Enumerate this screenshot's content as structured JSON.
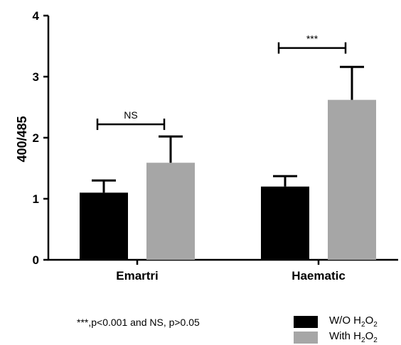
{
  "chart_data": {
    "type": "bar",
    "title": "",
    "ylabel": "400/485",
    "xlabel": "",
    "ylim": [
      0,
      4
    ],
    "yticks": [
      "0",
      "1",
      "2",
      "3",
      "4"
    ],
    "categories": [
      "Emartri",
      "Haematic"
    ],
    "series": [
      {
        "name_prefix": "W/O H",
        "name_sub": "2",
        "name_mid": "O",
        "name_sub2": "2",
        "color": "#000000",
        "values": [
          1.1,
          1.2
        ],
        "errors": [
          0.2,
          0.17
        ]
      },
      {
        "name_prefix": "With H",
        "name_sub": "2",
        "name_mid": "O",
        "name_sub2": "2",
        "color": "#a6a6a6",
        "values": [
          1.59,
          2.62
        ],
        "errors": [
          0.43,
          0.54
        ]
      }
    ],
    "significance": [
      {
        "category": "Emartri",
        "label": "NS",
        "y": 2.22
      },
      {
        "category": "Haematic",
        "label": "***",
        "y": 3.47
      }
    ],
    "footnote": "***,p<0.001 and NS, p>0.05",
    "legend_position": "bottom-right"
  }
}
